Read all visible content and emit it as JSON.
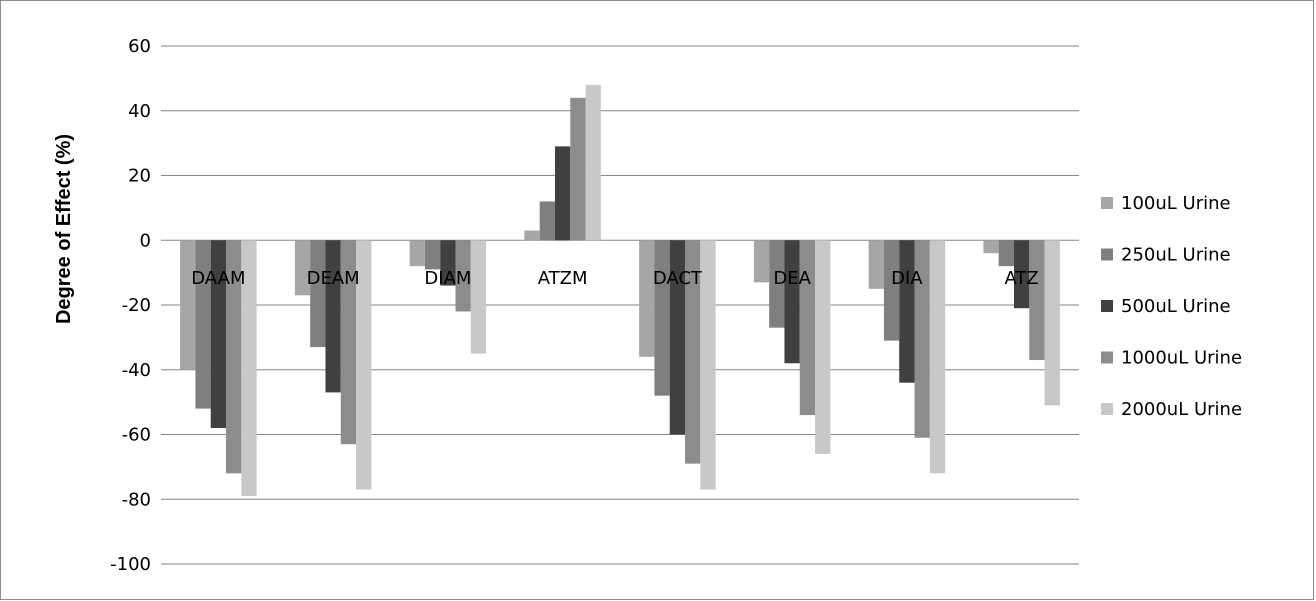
{
  "chart_data": {
    "type": "bar",
    "title": "",
    "xlabel": "",
    "ylabel": "Degree of Effect (%)",
    "ylim": [
      -100,
      60
    ],
    "yticks": [
      60,
      40,
      20,
      0,
      -20,
      -40,
      -60,
      -80,
      -100
    ],
    "grid": true,
    "legend_position": "right",
    "categories": [
      "DAAM",
      "DEAM",
      "DIAM",
      "ATZM",
      "DACT",
      "DEA",
      "DIA",
      "ATZ"
    ],
    "series": [
      {
        "name": "100uL Urine",
        "color": "#a6a6a6",
        "values": [
          -40,
          -17,
          -8,
          3,
          -36,
          -13,
          -15,
          -4
        ]
      },
      {
        "name": "250uL Urine",
        "color": "#7f7f7f",
        "values": [
          -52,
          -33,
          -9,
          12,
          -48,
          -27,
          -31,
          -8
        ]
      },
      {
        "name": "500uL Urine",
        "color": "#404040",
        "values": [
          -58,
          -47,
          -14,
          29,
          -60,
          -38,
          -44,
          -21
        ]
      },
      {
        "name": "1000uL Urine",
        "color": "#8c8c8c",
        "values": [
          -72,
          -63,
          -22,
          44,
          -69,
          -54,
          -61,
          -37
        ]
      },
      {
        "name": "2000uL Urine",
        "color": "#c8c8c8",
        "values": [
          -79,
          -77,
          -35,
          48,
          -77,
          -66,
          -72,
          -51
        ]
      }
    ]
  }
}
